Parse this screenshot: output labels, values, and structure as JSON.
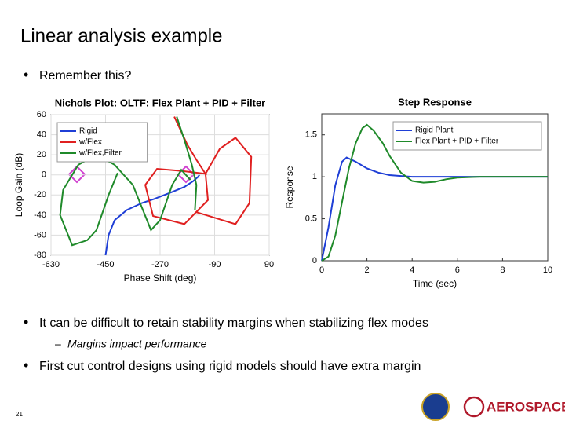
{
  "slide": {
    "title": "Linear analysis example",
    "bullets": [
      "Remember this?",
      "It can be difficult to retain stability margins when stabilizing flex modes",
      "First cut control designs using rigid models should have extra margin"
    ],
    "sub_bullet": "Margins impact performance",
    "page_number": "21",
    "logo_text": "AEROSPACE"
  },
  "chart_data": [
    {
      "type": "line",
      "title": "Nichols Plot: OLTF: Flex Plant + PID + Filter",
      "x_label": "Phase Shift (deg)",
      "y_label": "Loop Gain (dB)",
      "xlim": [
        -630,
        90
      ],
      "ylim": [
        -80,
        60
      ],
      "xticks": [
        -630,
        -450,
        -270,
        -90,
        90
      ],
      "yticks": [
        60,
        40,
        20,
        0,
        -20,
        -40,
        -60,
        -80
      ],
      "grid": true,
      "legend": "upper left",
      "series": [
        {
          "name": "Rigid",
          "color": "#1f3fd6",
          "x": [
            -450,
            -440,
            -420,
            -380,
            -330,
            -290,
            -230,
            -190,
            -160,
            -145,
            -140
          ],
          "values": [
            -80,
            -60,
            -45,
            -35,
            -28,
            -24,
            -17,
            -12,
            -6,
            -2,
            0
          ]
        },
        {
          "name": "w/Flex",
          "color": "#e02020",
          "x": [
            -223,
            -180,
            -150,
            -120,
            -200,
            -280,
            -319,
            -293,
            -190,
            -112,
            -120,
            -73,
            -21,
            31,
            25,
            -21,
            -151
          ],
          "values": [
            58,
            30,
            15,
            1,
            4,
            6,
            -10,
            -41,
            -49,
            -25,
            1,
            26,
            37,
            18,
            -28,
            -49,
            -37
          ]
        },
        {
          "name": "w/Flex,Filter",
          "color": "#1f8a2a",
          "x": [
            -215,
            -190,
            -165,
            -150,
            -155,
            null,
            -410,
            -440,
            -480,
            -510,
            -560,
            -600,
            -590,
            -540,
            -480,
            -420,
            -360,
            -320,
            -300,
            -270,
            -230,
            -200,
            -170
          ],
          "values": [
            58,
            35,
            10,
            -10,
            -35,
            null,
            2,
            -20,
            -55,
            -65,
            -70,
            -40,
            -15,
            10,
            20,
            10,
            -10,
            -40,
            -55,
            -45,
            -10,
            5,
            -5
          ]
        }
      ]
    },
    {
      "type": "line",
      "title": "Step Response",
      "x_label": "Time (sec)",
      "y_label": "Response",
      "xlim": [
        0,
        10
      ],
      "ylim": [
        0,
        1.75
      ],
      "xticks": [
        0,
        2,
        4,
        6,
        8,
        10
      ],
      "yticks": [
        0,
        0.5,
        1,
        1.5
      ],
      "grid": false,
      "legend": "upper right",
      "series": [
        {
          "name": "Rigid Plant",
          "color": "#1f3fd6",
          "x": [
            0,
            0.3,
            0.6,
            0.9,
            1.1,
            1.5,
            2,
            2.5,
            3,
            3.5,
            4,
            5,
            6,
            7,
            10
          ],
          "values": [
            0,
            0.4,
            0.9,
            1.18,
            1.23,
            1.18,
            1.1,
            1.05,
            1.02,
            1.01,
            1,
            1,
            1,
            1,
            1
          ]
        },
        {
          "name": "Flex Plant + PID + Filter",
          "color": "#1f8a2a",
          "x": [
            0,
            0.3,
            0.6,
            0.9,
            1.2,
            1.5,
            1.8,
            2,
            2.3,
            2.7,
            3,
            3.5,
            4,
            4.5,
            5,
            5.5,
            6,
            7,
            8,
            10
          ],
          "values": [
            0,
            0.05,
            0.3,
            0.7,
            1.1,
            1.4,
            1.58,
            1.62,
            1.55,
            1.4,
            1.25,
            1.05,
            0.95,
            0.93,
            0.94,
            0.97,
            0.99,
            1,
            1,
            1
          ]
        }
      ]
    }
  ]
}
